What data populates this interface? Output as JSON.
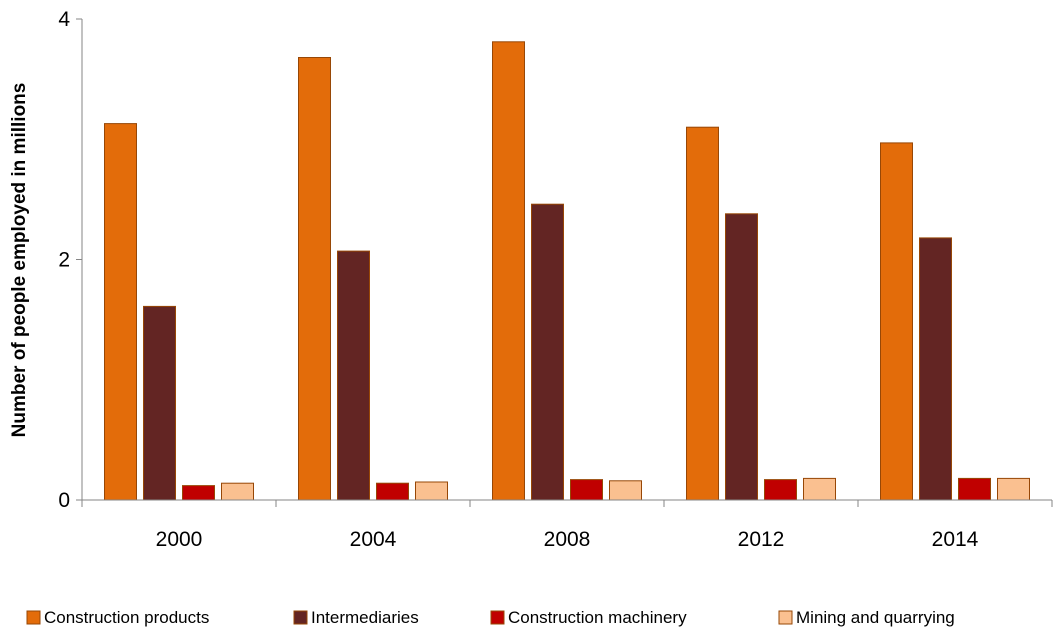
{
  "chart_data": {
    "type": "bar",
    "title": "",
    "xlabel": "",
    "ylabel": "Number of people employed in millions",
    "ylim": [
      0,
      4
    ],
    "yticks": [
      "0",
      "2",
      "4"
    ],
    "categories": [
      "2000",
      "2004",
      "2008",
      "2012",
      "2014"
    ],
    "series": [
      {
        "name": "Construction products",
        "color": "#E36C0A",
        "values": [
          3.13,
          3.68,
          3.81,
          3.1,
          2.97
        ]
      },
      {
        "name": "Intermediaries",
        "color": "#632523",
        "values": [
          1.61,
          2.07,
          2.46,
          2.38,
          2.18
        ]
      },
      {
        "name": "Construction machinery",
        "color": "#C00000",
        "values": [
          0.12,
          0.14,
          0.17,
          0.17,
          0.18
        ]
      },
      {
        "name": "Mining and quarrying",
        "color": "#FAC090",
        "values": [
          0.14,
          0.15,
          0.16,
          0.18,
          0.18
        ]
      }
    ],
    "grid": false,
    "legend_position": "bottom"
  }
}
